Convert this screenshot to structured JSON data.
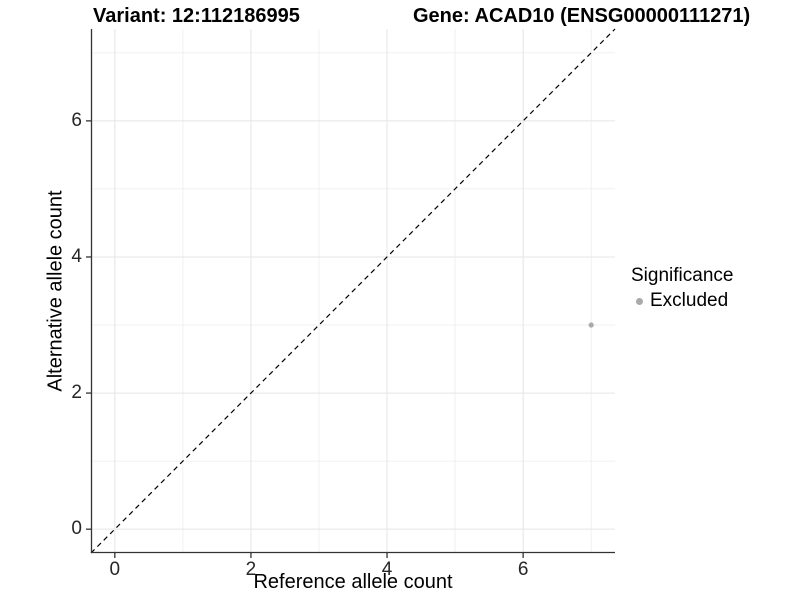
{
  "chart_data": {
    "type": "scatter",
    "title_left": "Variant: 12:112186995",
    "title_right": "Gene: ACAD10 (ENSG00000111271)",
    "xlabel": "Reference allele count",
    "ylabel": "Alternative allele count",
    "xlim": [
      -0.35,
      7.35
    ],
    "ylim": [
      -0.35,
      7.35
    ],
    "x_ticks": [
      0,
      2,
      4,
      6
    ],
    "y_ticks": [
      0,
      2,
      4,
      6
    ],
    "major_gridlines": [
      0,
      2,
      4,
      6
    ],
    "minor_gridlines": [
      1,
      3,
      5,
      7
    ],
    "grid": true,
    "identity_line": {
      "slope": 1,
      "intercept": 0,
      "linetype": "dashed",
      "color": "#000000"
    },
    "series": [
      {
        "name": "Excluded",
        "points": [
          {
            "x": 7,
            "y": 3
          }
        ],
        "color": "#aaaaaa"
      }
    ],
    "legend": {
      "title": "Significance",
      "position": "right",
      "items": [
        {
          "label": "Excluded",
          "color": "#aaaaaa"
        }
      ]
    }
  },
  "colors": {
    "background": "#ffffff",
    "axis_line": "#333333",
    "tick_mark": "#333333",
    "tick_label": "#262626",
    "major_grid": "#e5e5e5",
    "minor_grid": "#f0f0f0",
    "point": "#aaaaaa",
    "identity_line": "#000000"
  }
}
